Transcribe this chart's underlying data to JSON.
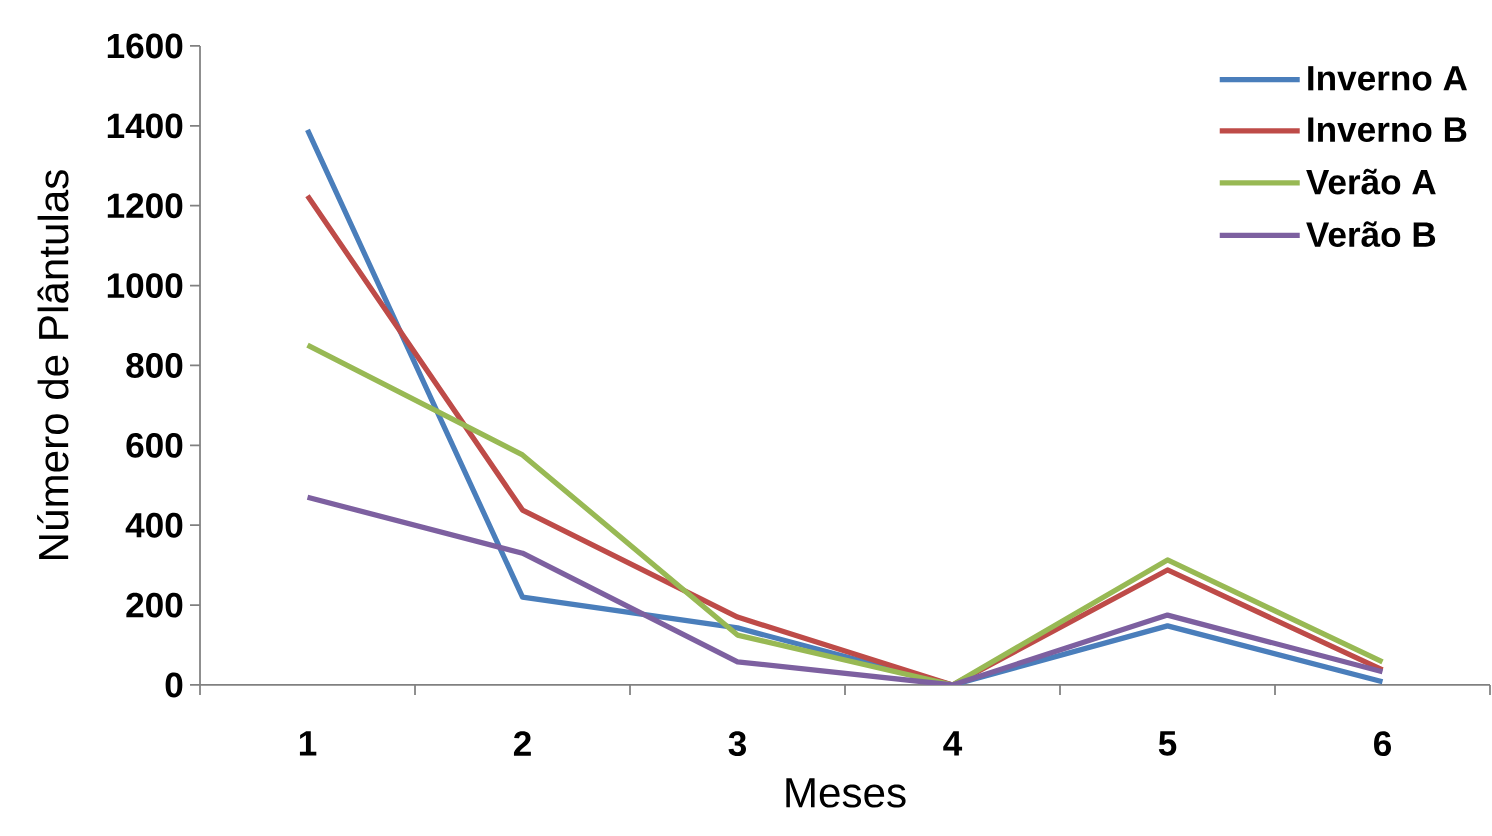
{
  "chart_data": {
    "type": "line",
    "xlabel": "Meses",
    "ylabel": "Número de Plântulas",
    "categories": [
      "1",
      "2",
      "3",
      "4",
      "5",
      "6"
    ],
    "series": [
      {
        "name": "Inverno A",
        "color": "#4a7ebb",
        "values": [
          1390,
          220,
          143,
          0,
          148,
          8
        ]
      },
      {
        "name": "Inverno B",
        "color": "#be4b48",
        "values": [
          1225,
          438,
          170,
          0,
          288,
          38
        ]
      },
      {
        "name": "Verão A",
        "color": "#98b954",
        "values": [
          851,
          576,
          125,
          0,
          313,
          58
        ]
      },
      {
        "name": "Verão B",
        "color": "#7d60a0",
        "values": [
          470,
          330,
          58,
          0,
          175,
          33
        ]
      }
    ],
    "ylim": [
      0,
      1600
    ],
    "yticks": [
      0,
      200,
      400,
      600,
      800,
      1000,
      1200,
      1400,
      1600
    ],
    "legend": "top right"
  }
}
